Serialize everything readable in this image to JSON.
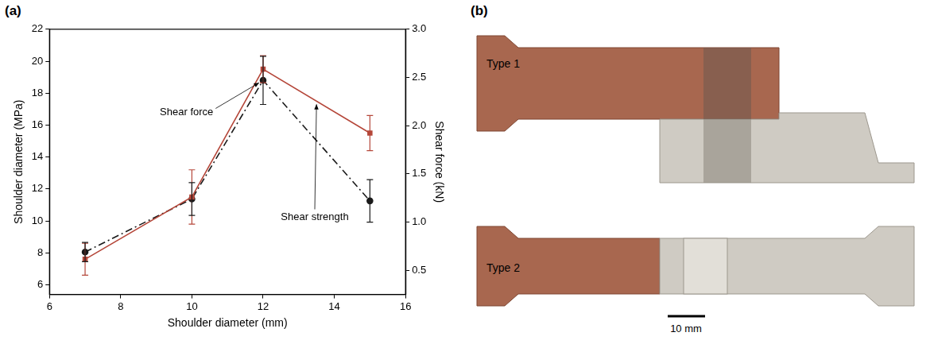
{
  "panel_labels": [
    "(a)",
    "(b)"
  ],
  "chart_data": {
    "type": "line",
    "x_label": "Shoulder diameter (mm)",
    "y_label": "Shoulder diameter (MPa)",
    "y2_label": "Shear force (kN)",
    "x": [
      7,
      10,
      12,
      15
    ],
    "series": [
      {
        "name": "Shear strength",
        "color": "#b5473a",
        "values": [
          7.6,
          11.5,
          19.5,
          15.5
        ],
        "errors": [
          1.0,
          1.7,
          0.85,
          1.1
        ],
        "marker": "square",
        "line_style": "solid"
      },
      {
        "name": "Shear force",
        "color": "#1a1a1a",
        "values": [
          0.69,
          1.24,
          2.47,
          1.22
        ],
        "errors": [
          0.1,
          0.17,
          0.25,
          0.22
        ],
        "marker": "circle",
        "line_style": "dashdot",
        "axis": "y2"
      }
    ],
    "xlim": [
      6,
      16
    ],
    "xticks": [
      6,
      8,
      10,
      12,
      14,
      16
    ],
    "ylim": [
      5.4,
      22
    ],
    "yticks": [
      6,
      8,
      10,
      12,
      14,
      16,
      18,
      20,
      22
    ],
    "y2lim": [
      0.25,
      3.0
    ],
    "y2ticks": [
      0.5,
      {
        "value": 1,
        "label": "1.0"
      },
      1.5,
      {
        "value": 2,
        "label": "2.0"
      },
      2.5,
      {
        "value": 3,
        "label": "3.0"
      }
    ],
    "grid": false,
    "legend": false
  },
  "photo": {
    "labels": [
      "Type 1",
      "Type 2"
    ],
    "scale_bar": "10 mm"
  }
}
